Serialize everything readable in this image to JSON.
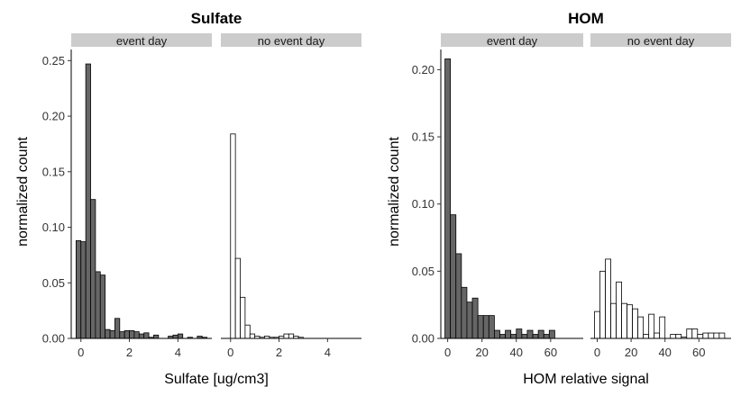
{
  "chart_data": [
    {
      "type": "bar",
      "title": "Sulfate",
      "xlabel": "Sulfate [ug/cm3]",
      "ylabel": "normalized count",
      "xlim": [
        -0.4,
        5.4
      ],
      "ylim": [
        0,
        0.26
      ],
      "xticks": [
        0,
        2,
        4
      ],
      "yticks": [
        "0.00",
        "0.05",
        "0.10",
        "0.15",
        "0.20",
        "0.25"
      ],
      "binwidth": 0.2,
      "panels": [
        {
          "strip": "event day",
          "fill": "#666666",
          "x": [
            -0.1,
            0.1,
            0.3,
            0.5,
            0.7,
            0.9,
            1.1,
            1.3,
            1.5,
            1.7,
            1.9,
            2.1,
            2.3,
            2.5,
            2.7,
            2.9,
            3.1,
            3.3,
            3.5,
            3.7,
            3.9,
            4.1,
            4.3,
            4.5,
            4.7,
            4.9,
            5.1
          ],
          "values": [
            0.088,
            0.087,
            0.247,
            0.125,
            0.06,
            0.057,
            0.008,
            0.007,
            0.018,
            0.006,
            0.007,
            0.007,
            0.006,
            0.004,
            0.005,
            0.001,
            0.003,
            0.0,
            0.0,
            0.002,
            0.003,
            0.004,
            0.0,
            0.001,
            0.0,
            0.002,
            0.001
          ]
        },
        {
          "strip": "no event day",
          "fill": "#ffffff",
          "x": [
            0.1,
            0.3,
            0.5,
            0.7,
            0.9,
            1.1,
            1.3,
            1.5,
            1.7,
            1.9,
            2.1,
            2.3,
            2.5,
            2.7,
            2.9
          ],
          "values": [
            0.184,
            0.072,
            0.037,
            0.012,
            0.004,
            0.002,
            0.001,
            0.002,
            0.001,
            0.001,
            0.002,
            0.004,
            0.004,
            0.002,
            0.001
          ]
        }
      ]
    },
    {
      "type": "bar",
      "title": "HOM",
      "xlabel": "HOM relative signal",
      "ylabel": "normalized count",
      "xlim": [
        -4,
        79
      ],
      "ylim": [
        0,
        0.215
      ],
      "xticks": [
        0,
        20,
        40,
        60
      ],
      "yticks": [
        "0.00",
        "0.05",
        "0.10",
        "0.15",
        "0.20"
      ],
      "binwidth": 3.2,
      "panels": [
        {
          "strip": "event day",
          "fill": "#666666",
          "x": [
            0,
            3.2,
            6.4,
            9.6,
            12.8,
            16,
            19.2,
            22.4,
            25.6,
            28.8,
            32,
            35.2,
            38.4,
            41.6,
            44.8,
            48,
            51.2,
            54.4,
            57.6,
            60.8,
            64
          ],
          "values": [
            0.208,
            0.092,
            0.063,
            0.038,
            0.027,
            0.03,
            0.017,
            0.017,
            0.017,
            0.006,
            0.003,
            0.006,
            0.003,
            0.007,
            0.003,
            0.006,
            0.003,
            0.006,
            0.003,
            0.006,
            0.0
          ]
        },
        {
          "strip": "no event day",
          "fill": "#ffffff",
          "x": [
            0,
            3.2,
            6.4,
            9.6,
            12.8,
            16,
            19.2,
            22.4,
            25.6,
            28.8,
            32,
            35.2,
            38.4,
            41.6,
            44.8,
            48,
            51.2,
            54.4,
            57.6,
            60.8,
            64,
            67.2,
            70.4,
            73.6
          ],
          "values": [
            0.02,
            0.05,
            0.059,
            0.026,
            0.042,
            0.026,
            0.025,
            0.022,
            0.016,
            0.003,
            0.018,
            0.004,
            0.016,
            0.0,
            0.003,
            0.003,
            0.001,
            0.007,
            0.007,
            0.003,
            0.004,
            0.004,
            0.004,
            0.004
          ]
        }
      ]
    }
  ]
}
